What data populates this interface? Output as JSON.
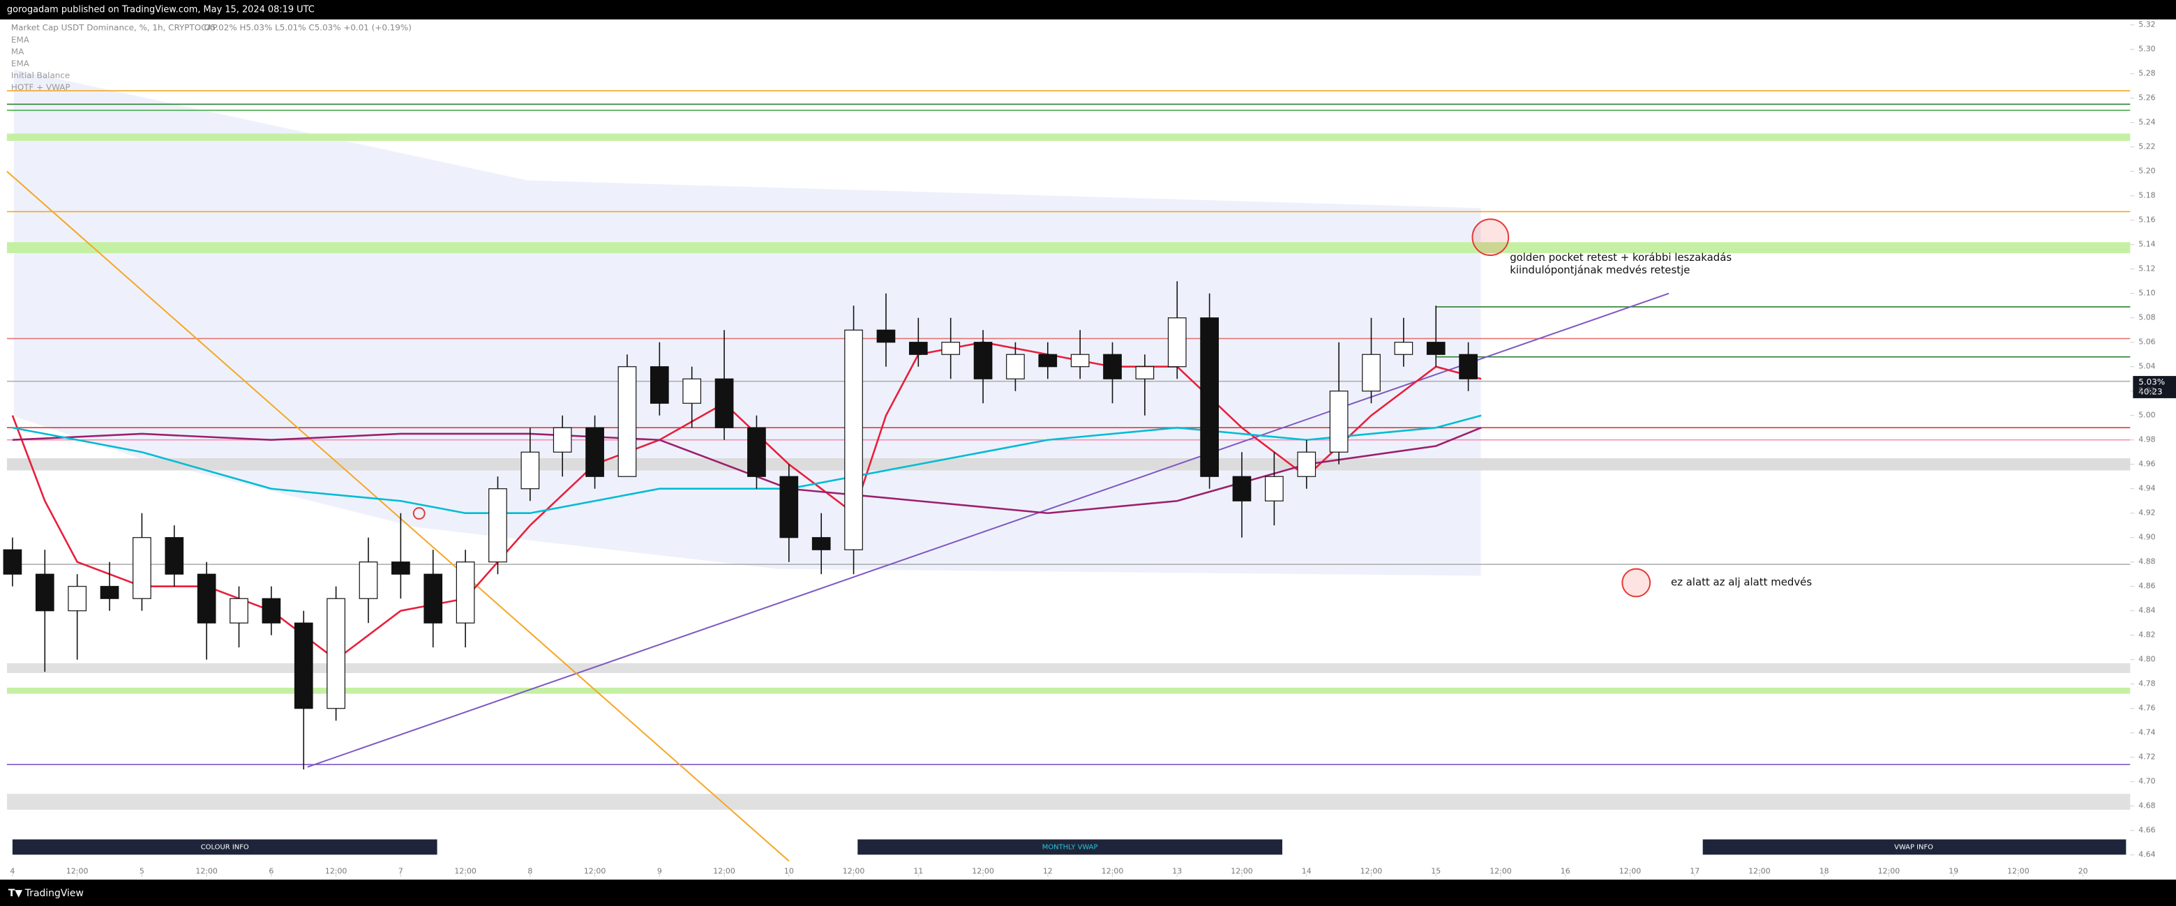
{
  "chart_data": {
    "type": "candlestick",
    "header": "gorogadam published on TradingView.com, May 15, 2024 08:19 UTC",
    "title": "Market Cap USDT Dominance, %, 1h, CRYPTOCAP",
    "ohlc_text": "O5.02%  H5.03%  L5.01%  C5.03%  +0.01 (+0.19%)",
    "other_indicators": [
      "Initial Balance",
      "HOTF + VWAP"
    ],
    "price_tag": "5.03%",
    "countdown": "40:23",
    "annotations": [
      "golden pocket retest + korábbi leszakadás",
      "kiindulópontjának medvés retestje",
      "ez alatt az alj alatt medvés"
    ],
    "info_boxes": [
      "COLOUR INFO",
      "MONTHLY VWAP",
      "VWAP INFO"
    ],
    "brand": "TradingView",
    "xlim": [
      3.957,
      20.365
    ],
    "ylim": [
      4.622,
      5.3245
    ],
    "xticks": [
      {
        "value": 4,
        "label": "4"
      },
      {
        "value": 4.5,
        "label": "12:00"
      },
      {
        "value": 5,
        "label": "5"
      },
      {
        "value": 5.5,
        "label": "12:00"
      },
      {
        "value": 6,
        "label": "6"
      },
      {
        "value": 6.5,
        "label": "12:00"
      },
      {
        "value": 7,
        "label": "7"
      },
      {
        "value": 7.5,
        "label": "12:00"
      },
      {
        "value": 8,
        "label": "8"
      },
      {
        "value": 8.5,
        "label": "12:00"
      },
      {
        "value": 9,
        "label": "9"
      },
      {
        "value": 9.5,
        "label": "12:00"
      },
      {
        "value": 10,
        "label": "10"
      },
      {
        "value": 10.5,
        "label": "12:00"
      },
      {
        "value": 11,
        "label": "11"
      },
      {
        "value": 11.5,
        "label": "12:00"
      },
      {
        "value": 12,
        "label": "12"
      },
      {
        "value": 12.5,
        "label": "12:00"
      },
      {
        "value": 13,
        "label": "13"
      },
      {
        "value": 13.5,
        "label": "12:00"
      },
      {
        "value": 14,
        "label": "14"
      },
      {
        "value": 14.5,
        "label": "12:00"
      },
      {
        "value": 15,
        "label": "15"
      },
      {
        "value": 15.5,
        "label": "12:00"
      },
      {
        "value": 16,
        "label": "16"
      },
      {
        "value": 16.5,
        "label": "12:00"
      },
      {
        "value": 17,
        "label": "17"
      },
      {
        "value": 17.5,
        "label": "12:00"
      },
      {
        "value": 18,
        "label": "18"
      },
      {
        "value": 18.5,
        "label": "12:00"
      },
      {
        "value": 19,
        "label": "19"
      },
      {
        "value": 19.5,
        "label": "12:00"
      },
      {
        "value": 20,
        "label": "20"
      }
    ],
    "yticks": [
      5.32,
      {
        "value": 5.3,
        "label": "5.30"
      },
      5.28,
      5.26,
      5.24,
      5.22,
      {
        "value": 5.2,
        "label": "5.20"
      },
      5.18,
      5.16,
      5.14,
      5.12,
      {
        "value": 5.1,
        "label": "5.10"
      },
      5.08,
      5.06,
      5.04,
      5.02,
      {
        "value": 5,
        "label": "5.00"
      },
      4.98,
      4.96,
      4.94,
      4.92,
      {
        "value": 4.9,
        "label": "4.90"
      },
      4.88,
      4.86,
      4.84,
      4.82,
      {
        "value": 4.8,
        "label": "4.80"
      },
      4.78,
      4.76,
      4.74,
      4.72,
      {
        "value": 4.7,
        "label": "4.70"
      },
      4.68,
      4.66,
      4.64
    ],
    "candles": [
      {
        "x": 4.0,
        "open": 4.89,
        "high": 4.9,
        "low": 4.86,
        "close": 4.87
      },
      {
        "x": 4.25,
        "open": 4.87,
        "high": 4.89,
        "low": 4.79,
        "close": 4.84
      },
      {
        "x": 4.5,
        "open": 4.84,
        "high": 4.87,
        "low": 4.8,
        "close": 4.86
      },
      {
        "x": 4.75,
        "open": 4.86,
        "high": 4.88,
        "low": 4.84,
        "close": 4.85
      },
      {
        "x": 5.0,
        "open": 4.85,
        "high": 4.92,
        "low": 4.84,
        "close": 4.9
      },
      {
        "x": 5.25,
        "open": 4.9,
        "high": 4.91,
        "low": 4.86,
        "close": 4.87
      },
      {
        "x": 5.5,
        "open": 4.87,
        "high": 4.88,
        "low": 4.8,
        "close": 4.83
      },
      {
        "x": 5.75,
        "open": 4.83,
        "high": 4.86,
        "low": 4.81,
        "close": 4.85
      },
      {
        "x": 6.0,
        "open": 4.85,
        "high": 4.86,
        "low": 4.82,
        "close": 4.83
      },
      {
        "x": 6.25,
        "open": 4.83,
        "high": 4.84,
        "low": 4.71,
        "close": 4.76
      },
      {
        "x": 6.5,
        "open": 4.76,
        "high": 4.86,
        "low": 4.75,
        "close": 4.85
      },
      {
        "x": 6.75,
        "open": 4.85,
        "high": 4.9,
        "low": 4.83,
        "close": 4.88
      },
      {
        "x": 7.0,
        "open": 4.88,
        "high": 4.92,
        "low": 4.85,
        "close": 4.87
      },
      {
        "x": 7.25,
        "open": 4.87,
        "high": 4.89,
        "low": 4.81,
        "close": 4.83
      },
      {
        "x": 7.5,
        "open": 4.83,
        "high": 4.89,
        "low": 4.81,
        "close": 4.88
      },
      {
        "x": 7.75,
        "open": 4.88,
        "high": 4.95,
        "low": 4.87,
        "close": 4.94
      },
      {
        "x": 8.0,
        "open": 4.94,
        "high": 4.99,
        "low": 4.93,
        "close": 4.97
      },
      {
        "x": 8.25,
        "open": 4.97,
        "high": 5.0,
        "low": 4.95,
        "close": 4.99
      },
      {
        "x": 8.5,
        "open": 4.99,
        "high": 5.0,
        "low": 4.94,
        "close": 4.95
      },
      {
        "x": 8.75,
        "open": 4.95,
        "high": 5.05,
        "low": 4.95,
        "close": 5.04
      },
      {
        "x": 9.0,
        "open": 5.04,
        "high": 5.06,
        "low": 5.0,
        "close": 5.01
      },
      {
        "x": 9.25,
        "open": 5.01,
        "high": 5.04,
        "low": 4.99,
        "close": 5.03
      },
      {
        "x": 9.5,
        "open": 5.03,
        "high": 5.07,
        "low": 4.98,
        "close": 4.99
      },
      {
        "x": 9.75,
        "open": 4.99,
        "high": 5.0,
        "low": 4.94,
        "close": 4.95
      },
      {
        "x": 10.0,
        "open": 4.95,
        "high": 4.96,
        "low": 4.88,
        "close": 4.9
      },
      {
        "x": 10.25,
        "open": 4.9,
        "high": 4.92,
        "low": 4.87,
        "close": 4.89
      },
      {
        "x": 10.5,
        "open": 4.89,
        "high": 5.09,
        "low": 4.87,
        "close": 5.07
      },
      {
        "x": 10.75,
        "open": 5.07,
        "high": 5.1,
        "low": 5.04,
        "close": 5.06
      },
      {
        "x": 11.0,
        "open": 5.06,
        "high": 5.08,
        "low": 5.04,
        "close": 5.05
      },
      {
        "x": 11.25,
        "open": 5.05,
        "high": 5.08,
        "low": 5.03,
        "close": 5.06
      },
      {
        "x": 11.5,
        "open": 5.06,
        "high": 5.07,
        "low": 5.01,
        "close": 5.03
      },
      {
        "x": 11.75,
        "open": 5.03,
        "high": 5.06,
        "low": 5.02,
        "close": 5.05
      },
      {
        "x": 12.0,
        "open": 5.05,
        "high": 5.06,
        "low": 5.03,
        "close": 5.04
      },
      {
        "x": 12.25,
        "open": 5.04,
        "high": 5.07,
        "low": 5.03,
        "close": 5.05
      },
      {
        "x": 12.5,
        "open": 5.05,
        "high": 5.06,
        "low": 5.01,
        "close": 5.03
      },
      {
        "x": 12.75,
        "open": 5.03,
        "high": 5.05,
        "low": 5.0,
        "close": 5.04
      },
      {
        "x": 13.0,
        "open": 5.04,
        "high": 5.11,
        "low": 5.03,
        "close": 5.08
      },
      {
        "x": 13.25,
        "open": 5.08,
        "high": 5.1,
        "low": 4.94,
        "close": 4.95
      },
      {
        "x": 13.5,
        "open": 4.95,
        "high": 4.97,
        "low": 4.9,
        "close": 4.93
      },
      {
        "x": 13.75,
        "open": 4.93,
        "high": 4.97,
        "low": 4.91,
        "close": 4.95
      },
      {
        "x": 14.0,
        "open": 4.95,
        "high": 4.98,
        "low": 4.94,
        "close": 4.97
      },
      {
        "x": 14.25,
        "open": 4.97,
        "high": 5.06,
        "low": 4.96,
        "close": 5.02
      },
      {
        "x": 14.5,
        "open": 5.02,
        "high": 5.08,
        "low": 5.01,
        "close": 5.05
      },
      {
        "x": 14.75,
        "open": 5.05,
        "high": 5.08,
        "low": 5.04,
        "close": 5.06
      },
      {
        "x": 15.0,
        "open": 5.06,
        "high": 5.09,
        "low": 5.04,
        "close": 5.05
      },
      {
        "x": 15.25,
        "open": 5.05,
        "high": 5.06,
        "low": 5.02,
        "close": 5.03
      }
    ],
    "series": [
      {
        "name": "EMA",
        "color": "#e91e3c",
        "x": [
          4.0,
          4.25,
          4.5,
          5.0,
          5.5,
          6.0,
          6.5,
          7.0,
          7.5,
          8.0,
          8.5,
          9.0,
          9.5,
          10.0,
          10.5,
          10.75,
          11.0,
          11.5,
          12.0,
          12.5,
          13.0,
          13.5,
          14.0,
          14.5,
          15.0,
          15.35
        ],
        "values": [
          5.0,
          4.93,
          4.88,
          4.86,
          4.86,
          4.84,
          4.8,
          4.84,
          4.85,
          4.91,
          4.96,
          4.98,
          5.01,
          4.96,
          4.92,
          5.0,
          5.05,
          5.06,
          5.05,
          5.04,
          5.04,
          4.99,
          4.95,
          5.0,
          5.04,
          5.03
        ]
      },
      {
        "name": "MA",
        "color": "#9c1f6e",
        "x": [
          4.0,
          5.0,
          6.0,
          7.0,
          8.0,
          9.0,
          10.0,
          11.0,
          12.0,
          13.0,
          14.0,
          15.0,
          15.35
        ],
        "values": [
          4.98,
          4.985,
          4.98,
          4.985,
          4.985,
          4.98,
          4.94,
          4.93,
          4.92,
          4.93,
          4.96,
          4.975,
          4.99
        ]
      },
      {
        "name": "EMA",
        "color": "#00bcd4",
        "x": [
          4.0,
          5.0,
          6.0,
          7.0,
          7.5,
          8.0,
          9.0,
          10.0,
          11.0,
          12.0,
          13.0,
          14.0,
          15.0,
          15.35
        ],
        "values": [
          4.99,
          4.97,
          4.94,
          4.93,
          4.92,
          4.92,
          4.94,
          4.94,
          4.96,
          4.98,
          4.99,
          4.98,
          4.99,
          5.0
        ]
      }
    ],
    "levels": [
      {
        "price": 5.266,
        "color": "#f5a623"
      },
      {
        "price": 5.255,
        "color": "#2e7d32"
      },
      {
        "price": 5.25,
        "color": "#4caf50"
      },
      {
        "price": 5.167,
        "color": "#f5a623"
      },
      {
        "price": 5.063,
        "color": "#e57373"
      },
      {
        "price": 5.089,
        "color": "#2e7d32",
        "start": 15.0
      },
      {
        "price": 5.048,
        "color": "#2e7d32",
        "start": 15.0
      },
      {
        "price": 5.028,
        "color": "#b0b0b0"
      },
      {
        "price": 4.99,
        "color": "#e53935"
      },
      {
        "price": 4.98,
        "color": "#f48fb1"
      },
      {
        "price": 4.878,
        "color": "#b0b0b0"
      },
      {
        "price": 4.714,
        "color": "#7e57c2"
      }
    ],
    "zones": [
      {
        "low": 5.225,
        "high": 5.231,
        "color": "#c5f0a4"
      },
      {
        "low": 5.133,
        "high": 5.142,
        "color": "#c5f0a4"
      },
      {
        "low": 4.955,
        "high": 4.965,
        "color": "#dcdcdc"
      },
      {
        "low": 4.789,
        "high": 4.797,
        "color": "#e0e0e0"
      },
      {
        "low": 4.772,
        "high": 4.777,
        "color": "#c5f0a4"
      },
      {
        "low": 4.677,
        "high": 4.69,
        "color": "#e0e0e0"
      }
    ],
    "trendlines": [
      {
        "x": [
          6.28,
          16.8
        ],
        "y": [
          4.712,
          5.1
        ],
        "color": "#7e57c2"
      },
      {
        "x": [
          3.957,
          10.0
        ],
        "y": [
          5.2,
          4.635
        ],
        "color": "#f5a623"
      }
    ]
  }
}
